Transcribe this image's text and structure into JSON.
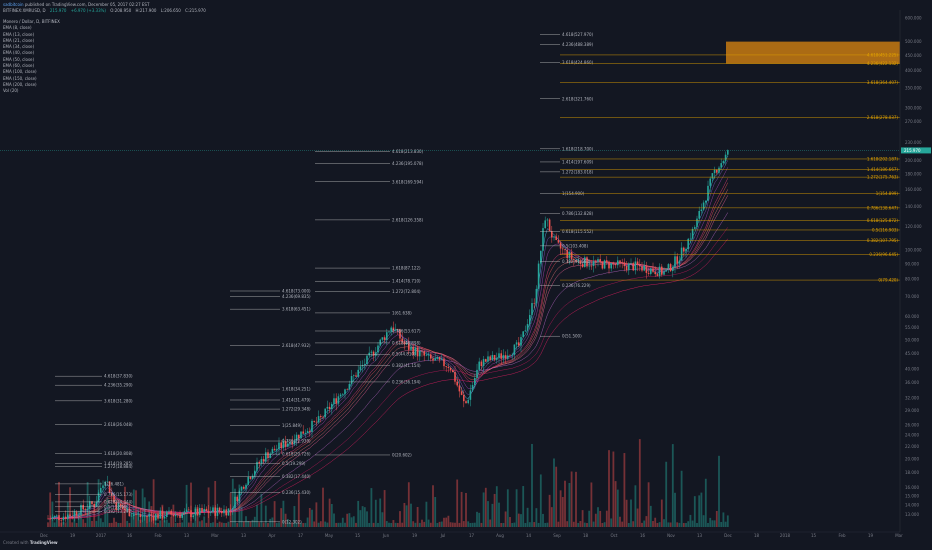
{
  "header": {
    "author": "sadbitcoin",
    "published": " published on TradingView.com, December 05, 2017 02:27 EST",
    "ticker": "BITFINEX:XMRUSD, D",
    "last": "215.970",
    "change": "+6.970 (+3.33%)",
    "open": "O:208.950",
    "high": "H:217.900",
    "low": "L:206.650",
    "close": "C:215.970"
  },
  "legend": [
    "Monero / Dollar, D, BITFINEX",
    "EMA (8, close)",
    "EMA (13, close)",
    "EMA (21, close)",
    "EMA (34, close)",
    "EMA (40, close)",
    "EMA (50, close)",
    "EMA (60, close)",
    "EMA (100, close)",
    "EMA (150, close)",
    "EMA (200, close)",
    "Vol (20)"
  ],
  "footer": {
    "created": "Created with",
    "brand": "TradingView"
  },
  "chart_data": {
    "type": "candlestick",
    "y_scale": "log",
    "ylim": [
      12,
      600
    ],
    "price_ticks": [
      600,
      500,
      450,
      400,
      350,
      300,
      270,
      230,
      200,
      180,
      160,
      140,
      120,
      100,
      90,
      80,
      70,
      60,
      55,
      50,
      45,
      40,
      36,
      32,
      29,
      26,
      24,
      22,
      20,
      18,
      16,
      15,
      14,
      13
    ],
    "last_price": 215.97,
    "date_ticks": [
      "Dec",
      "19",
      "2017",
      "16",
      "Feb",
      "13",
      "Mar",
      "13",
      "Apr",
      "17",
      "May",
      "15",
      "Jun",
      "19",
      "Jul",
      "17",
      "Aug",
      "14",
      "Sep",
      "18",
      "Oct",
      "16",
      "Nov",
      "13",
      "Dec",
      "18",
      "2018",
      "15",
      "Feb",
      "19",
      "Mar"
    ],
    "fib_sets": [
      {
        "color": "white",
        "levels": [
          {
            "t": "4.618(37.830)",
            "v": 37.83
          },
          {
            "t": "4.236(35.290)",
            "v": 35.29
          },
          {
            "t": "3.618(31.280)",
            "v": 31.28
          },
          {
            "t": "2.618(26.048)",
            "v": 26.05
          },
          {
            "t": "1.618(20.808)",
            "v": 20.81
          },
          {
            "t": "1.414(19.285)",
            "v": 19.29
          },
          {
            "t": "1.272(18.884)",
            "v": 18.88
          },
          {
            "t": "1(16.481)",
            "v": 16.48
          },
          {
            "t": "0.786(15.173)",
            "v": 15.17
          },
          {
            "t": "0.618(14.344)",
            "v": 14.34
          },
          {
            "t": "0.5(13.806)",
            "v": 13.81
          },
          {
            "t": "0.382(13.297)",
            "v": 13.3
          }
        ]
      },
      {
        "color": "white",
        "levels": [
          {
            "t": "4.618(73.000)",
            "v": 73.0
          },
          {
            "t": "4.236(69.835)",
            "v": 69.84
          },
          {
            "t": "3.618(63.451)",
            "v": 63.45
          },
          {
            "t": "2.618(47.932)",
            "v": 47.93
          },
          {
            "t": "1.618(34.251)",
            "v": 34.25
          },
          {
            "t": "1.414(31.479)",
            "v": 31.48
          },
          {
            "t": "1.272(29.348)",
            "v": 29.35
          },
          {
            "t": "1(25.849)",
            "v": 25.85
          },
          {
            "t": "0.786(22.939)",
            "v": 22.94
          },
          {
            "t": "0.618(20.726)",
            "v": 20.73
          },
          {
            "t": "0.5(19.299)",
            "v": 19.3
          },
          {
            "t": "0.382(17.440)",
            "v": 17.44
          },
          {
            "t": "0.236(15.430)",
            "v": 15.43
          },
          {
            "t": "0(12.302)",
            "v": 12.3
          }
        ]
      },
      {
        "color": "white",
        "levels": [
          {
            "t": "4.618(213.830)",
            "v": 213.83
          },
          {
            "t": "4.236(195.078)",
            "v": 195.08
          },
          {
            "t": "3.618(169.594)",
            "v": 169.59
          },
          {
            "t": "2.618(126.358)",
            "v": 126.36
          },
          {
            "t": "1.618(87.122)",
            "v": 87.12
          },
          {
            "t": "1.414(78.710)",
            "v": 78.71
          },
          {
            "t": "1.272(72.804)",
            "v": 72.8
          },
          {
            "t": "1(61.638)",
            "v": 61.64
          },
          {
            "t": "0.786(53.617)",
            "v": 53.62
          },
          {
            "t": "0.618(48.898)",
            "v": 48.9
          },
          {
            "t": "0.5(44.810)",
            "v": 44.81
          },
          {
            "t": "0.382(41.154)",
            "v": 41.15
          },
          {
            "t": "0.236(36.194)",
            "v": 36.19
          },
          {
            "t": "0(20.602)",
            "v": 20.6
          }
        ]
      },
      {
        "color": "white",
        "levels": [
          {
            "t": "4.618(527.970)",
            "v": 527.97
          },
          {
            "t": "4.236(488.389)",
            "v": 488.39
          },
          {
            "t": "3.618(424.860)",
            "v": 424.86
          },
          {
            "t": "2.618(321.760)",
            "v": 321.76
          },
          {
            "t": "1.618(218.700)",
            "v": 218.7
          },
          {
            "t": "1.414(197.609)",
            "v": 197.61
          },
          {
            "t": "1.272(183.018)",
            "v": 183.02
          },
          {
            "t": "1(154.900)",
            "v": 154.9
          },
          {
            "t": "0.786(132.828)",
            "v": 132.83
          },
          {
            "t": "0.618(115.552)",
            "v": 115.55
          },
          {
            "t": "0.5(103.408)",
            "v": 103.41
          },
          {
            "t": "0.382(91.663)",
            "v": 91.66
          },
          {
            "t": "0.236(76.229)",
            "v": 76.23
          },
          {
            "t": "0(51.500)",
            "v": 51.5
          }
        ]
      },
      {
        "color": "orange",
        "levels": [
          {
            "t": "4.618(451.225)",
            "v": 451.23
          },
          {
            "t": "4.236(422.132)",
            "v": 422.13
          },
          {
            "t": "3.618(364.407)",
            "v": 364.41
          },
          {
            "t": "2.618(278.037)",
            "v": 278.04
          },
          {
            "t": "1.618(202.187)",
            "v": 202.19
          },
          {
            "t": "1.414(186.667)",
            "v": 186.67
          },
          {
            "t": "1.272(175.763)",
            "v": 175.76
          },
          {
            "t": "1(154.899)",
            "v": 154.9
          },
          {
            "t": "0.786(138.647)",
            "v": 138.65
          },
          {
            "t": "0.618(125.872)",
            "v": 125.87
          },
          {
            "t": "0.5(116.903)",
            "v": 116.9
          },
          {
            "t": "0.382(107.795)",
            "v": 107.8
          },
          {
            "t": "0.236(96.645)",
            "v": 96.65
          },
          {
            "t": "0(79.420)",
            "v": 79.42
          }
        ]
      }
    ],
    "target_zone": {
      "from": 422,
      "to": 500
    },
    "colors": {
      "up": "#26a69a",
      "down": "#ef5350",
      "bg": "#131722",
      "fib": "#c8c8c8",
      "fib_alt": "#e0a100",
      "zone": "#c77a12",
      "price_tag": "#26a69a"
    },
    "grid": false
  }
}
